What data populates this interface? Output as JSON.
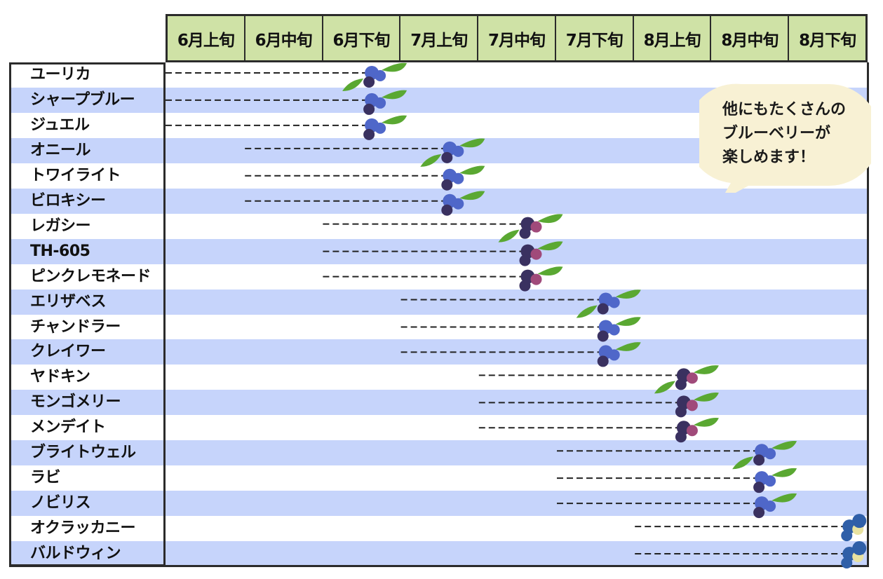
{
  "chart_data": {
    "type": "gantt",
    "columns": [
      "6月上旬",
      "6月中旬",
      "6月下旬",
      "7月上旬",
      "7月中旬",
      "7月下旬",
      "8月上旬",
      "8月中旬",
      "8月下旬"
    ],
    "rows": [
      {
        "name": "ユーリカ",
        "start": "6月上旬",
        "end": "6月下旬"
      },
      {
        "name": "シャープブルー",
        "start": "6月上旬",
        "end": "6月下旬"
      },
      {
        "name": "ジュエル",
        "start": "6月上旬",
        "end": "6月下旬"
      },
      {
        "name": "オニール",
        "start": "6月中旬",
        "end": "7月上旬"
      },
      {
        "name": "トワイライト",
        "start": "6月中旬",
        "end": "7月上旬"
      },
      {
        "name": "ビロキシー",
        "start": "6月中旬",
        "end": "7月上旬"
      },
      {
        "name": "レガシー",
        "start": "6月下旬",
        "end": "7月中旬"
      },
      {
        "name": "TH-605",
        "start": "6月下旬",
        "end": "7月中旬"
      },
      {
        "name": "ピンクレモネード",
        "start": "6月下旬",
        "end": "7月中旬"
      },
      {
        "name": "エリザベス",
        "start": "7月上旬",
        "end": "7月下旬"
      },
      {
        "name": "チャンドラー",
        "start": "7月上旬",
        "end": "7月下旬"
      },
      {
        "name": "クレイワー",
        "start": "7月上旬",
        "end": "7月下旬"
      },
      {
        "name": "ヤドキン",
        "start": "7月中旬",
        "end": "8月上旬"
      },
      {
        "name": "モンゴメリー",
        "start": "7月中旬",
        "end": "8月上旬"
      },
      {
        "name": "メンデイト",
        "start": "7月中旬",
        "end": "8月上旬"
      },
      {
        "name": "ブライトウェル",
        "start": "7月下旬",
        "end": "8月中旬"
      },
      {
        "name": "ラビ",
        "start": "7月下旬",
        "end": "8月中旬"
      },
      {
        "name": "ノビリス",
        "start": "7月下旬",
        "end": "8月中旬"
      },
      {
        "name": "オクラッカニー",
        "start": "8月上旬",
        "end": "8月下旬"
      },
      {
        "name": "バルドウィン",
        "start": "8月上旬",
        "end": "8月下旬"
      }
    ],
    "annotation": "他にもたくさんの\nブルーベリーが\n楽しめます！",
    "colors": {
      "header": "#cfe2a6",
      "stripe": "#c6d4fb",
      "bubble": "#f8f1d4",
      "berry_blue": "#4f67c9",
      "berry_dark": "#3a3160",
      "berry_pink": "#a04a7a",
      "leaf": "#5aa832"
    }
  },
  "bubble": {
    "lines": [
      "他にもたくさんの",
      "ブルーベリーが",
      "楽しめます！"
    ]
  }
}
